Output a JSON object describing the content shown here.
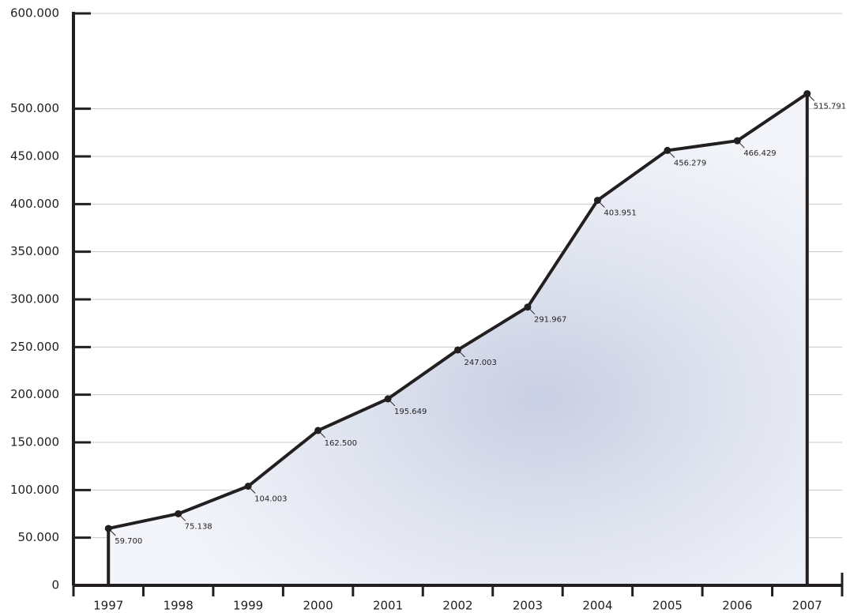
{
  "chart_data": {
    "type": "area",
    "categories": [
      "1997",
      "1998",
      "1999",
      "2000",
      "2001",
      "2002",
      "2003",
      "2004",
      "2005",
      "2006",
      "2007"
    ],
    "values": [
      59700,
      75138,
      104003,
      162500,
      195649,
      247003,
      291967,
      403951,
      456279,
      466429,
      515791
    ],
    "value_labels": [
      "59.700",
      "75.138",
      "104.003",
      "162.500",
      "195.649",
      "247.003",
      "291.967",
      "403.951",
      "456.279",
      "466.429",
      "515.791"
    ],
    "color": "#231f20",
    "ylim": [
      0,
      600000
    ],
    "yticks": [
      0,
      {
        "value": 50000,
        "label": "50.000"
      },
      {
        "value": 100000,
        "label": "100.000"
      },
      {
        "value": 150000,
        "label": "150.000"
      },
      {
        "value": 200000,
        "label": "200.000"
      },
      {
        "value": 250000,
        "label": "250.000"
      },
      {
        "value": 300000,
        "label": "300.000"
      },
      {
        "value": 350000,
        "label": "350.000"
      },
      {
        "value": 400000,
        "label": "400.000"
      },
      {
        "value": 450000,
        "label": "450.000"
      },
      {
        "value": 500000,
        "label": "500.000"
      },
      {
        "value": 600000,
        "label": "600.000"
      }
    ],
    "grid": true
  }
}
